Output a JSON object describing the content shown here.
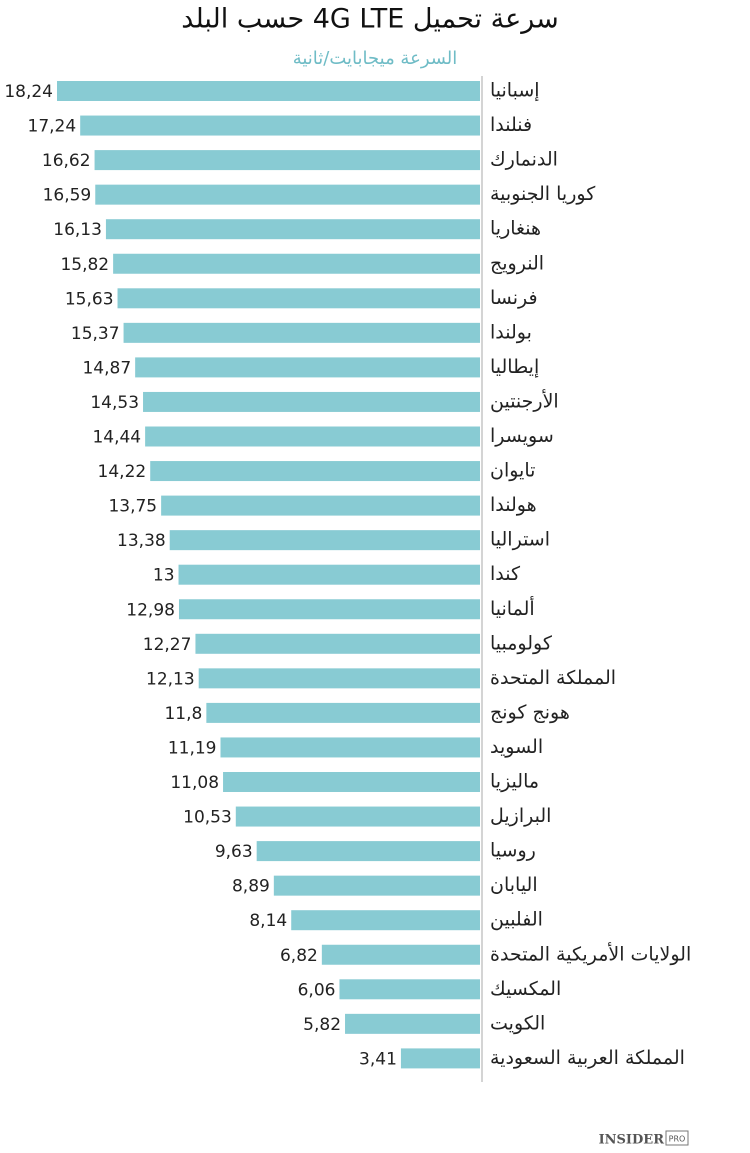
{
  "chart_data": {
    "type": "bar",
    "orientation": "horizontal",
    "title": "سرعة تحميل 4G LTE حسب البلد",
    "subtitle": "السرعة ميجابايت/ثانية",
    "categories": [
      "إسبانيا",
      "فنلندا",
      "الدنمارك",
      "كوريا الجنوبية",
      "هنغاريا",
      "النرويج",
      "فرنسا",
      "بولندا",
      "إيطاليا",
      "الأرجنتين",
      "سويسرا",
      "تايوان",
      "هولندا",
      "استراليا",
      "كندا",
      "ألمانيا",
      "كولومبيا",
      "المملكة المتحدة",
      "هونج كونج",
      "السويد",
      "ماليزيا",
      "البرازيل",
      "روسيا",
      "اليابان",
      "الفلبين",
      "الولايات الأمريكية المتحدة",
      "المكسيك",
      "الكويت",
      "المملكة العربية السعودية"
    ],
    "values": [
      18.24,
      17.24,
      16.62,
      16.59,
      16.13,
      15.82,
      15.63,
      15.37,
      14.87,
      14.53,
      14.44,
      14.22,
      13.75,
      13.38,
      13,
      12.98,
      12.27,
      12.13,
      11.8,
      11.19,
      11.08,
      10.53,
      9.63,
      8.89,
      8.14,
      6.82,
      6.06,
      5.82,
      3.41
    ],
    "value_labels": [
      "18,24",
      "17,24",
      "16,62",
      "16,59",
      "16,13",
      "15,82",
      "15,63",
      "15,37",
      "14,87",
      "14,53",
      "14,44",
      "14,22",
      "13,75",
      "13,38",
      "13",
      "12,98",
      "12,27",
      "12,13",
      "11,8",
      "11,19",
      "11,08",
      "10,53",
      "9,63",
      "8,89",
      "8,14",
      "6,82",
      "6,06",
      "5,82",
      "3,41"
    ],
    "color": "#88cbd3",
    "logo": {
      "main": "INSIDER",
      "badge": "PRO"
    }
  }
}
